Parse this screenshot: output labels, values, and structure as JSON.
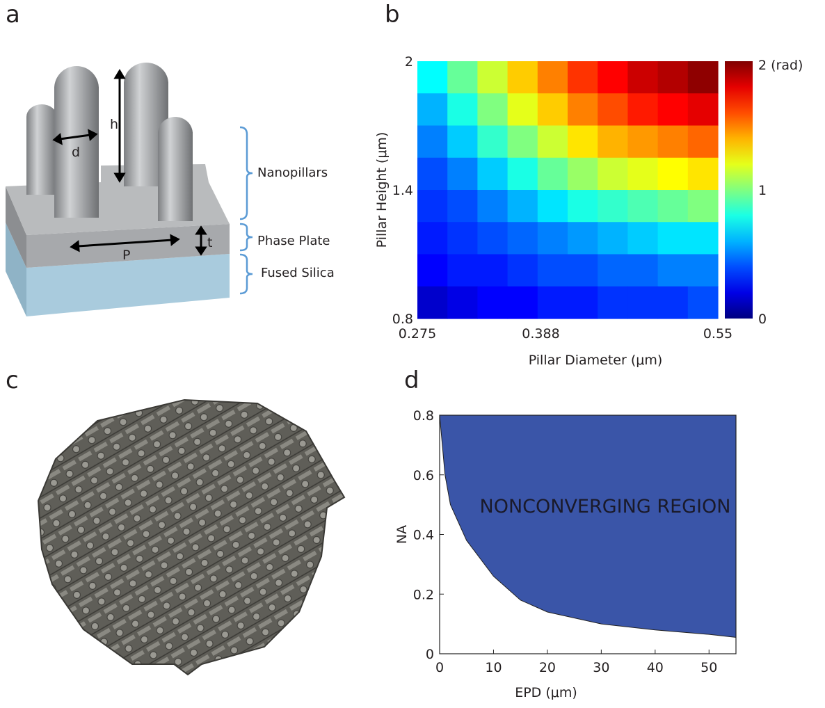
{
  "panel_labels": [
    "a",
    "b",
    "c",
    "d"
  ],
  "diagram_a": {
    "dimensions": [
      "h",
      "d",
      "t",
      "P"
    ],
    "layers": [
      "Nanopillars",
      "Phase Plate",
      "Fused Silica"
    ]
  },
  "chart_data": [
    {
      "type": "heatmap",
      "xlabel": "Pillar Diameter (μm)",
      "ylabel": "Pillar Height (μm)",
      "xlim": [
        0.275,
        0.55
      ],
      "xticks": [
        0.275,
        0.388,
        0.55
      ],
      "ylim": [
        0.8,
        2
      ],
      "yticks": [
        0.8,
        1.4,
        2
      ],
      "colormap": "jet",
      "clim": [
        0,
        2
      ],
      "cticks": [
        0,
        1,
        {
          "value": 2,
          "label": "2 (rad)"
        }
      ],
      "z": [
        [
          0.75,
          0.95,
          1.15,
          1.35,
          1.5,
          1.65,
          1.75,
          1.85,
          1.9,
          1.97
        ],
        [
          0.6,
          0.8,
          1.0,
          1.2,
          1.35,
          1.5,
          1.6,
          1.7,
          1.75,
          1.8
        ],
        [
          0.5,
          0.65,
          0.85,
          1.0,
          1.15,
          1.3,
          1.4,
          1.45,
          1.5,
          1.55
        ],
        [
          0.4,
          0.5,
          0.65,
          0.8,
          0.95,
          1.05,
          1.15,
          1.2,
          1.25,
          1.3
        ],
        [
          0.35,
          0.4,
          0.5,
          0.6,
          0.7,
          0.8,
          0.85,
          0.9,
          0.95,
          1.0
        ],
        [
          0.3,
          0.35,
          0.4,
          0.45,
          0.5,
          0.55,
          0.6,
          0.65,
          0.7,
          0.7
        ],
        [
          0.25,
          0.3,
          0.3,
          0.35,
          0.4,
          0.4,
          0.45,
          0.45,
          0.5,
          0.5
        ],
        [
          0.15,
          0.2,
          0.25,
          0.25,
          0.3,
          0.3,
          0.35,
          0.35,
          0.35,
          0.4
        ]
      ]
    },
    {
      "type": "area",
      "xlabel": "EPD (μm)",
      "ylabel": "NA",
      "annotation": "NONCONVERGING REGION",
      "color": "#3a55a8",
      "xlim": [
        0,
        55
      ],
      "xticks": [
        0,
        10,
        20,
        30,
        40,
        50
      ],
      "ylim": [
        0,
        0.8
      ],
      "yticks": [
        0,
        0.2,
        0.4,
        0.6,
        0.8
      ],
      "x": [
        0,
        1,
        2,
        5,
        10,
        15,
        20,
        30,
        40,
        50,
        55
      ],
      "values": [
        0.8,
        0.6,
        0.5,
        0.38,
        0.26,
        0.18,
        0.14,
        0.1,
        0.08,
        0.065,
        0.055
      ]
    }
  ]
}
